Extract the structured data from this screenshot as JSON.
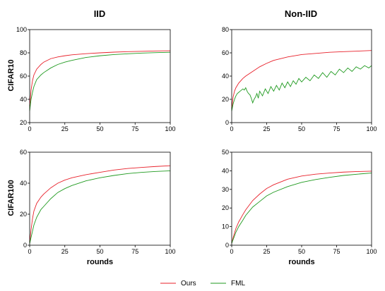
{
  "figure": {
    "col_titles": [
      "IID",
      "Non-IID"
    ],
    "row_labels": [
      "CIFAR10",
      "CIFAR100"
    ],
    "legend": [
      {
        "label": "Ours",
        "color": "#e8202a"
      },
      {
        "label": "FML",
        "color": "#1f9a1f"
      }
    ]
  },
  "chart_data": [
    {
      "type": "line",
      "col": "IID",
      "row": "CIFAR10",
      "xlabel": "",
      "ylabel": "CIFAR10",
      "xlim": [
        0,
        100
      ],
      "ylim": [
        20,
        100
      ],
      "xticks": [
        0,
        25,
        50,
        75,
        100
      ],
      "yticks": [
        20,
        40,
        60,
        80,
        100
      ],
      "grid": false,
      "series": [
        {
          "name": "Ours",
          "color": "#e8202a",
          "x": [
            0,
            1,
            2,
            3,
            5,
            8,
            10,
            15,
            20,
            25,
            30,
            40,
            50,
            60,
            70,
            80,
            90,
            100
          ],
          "y": [
            34,
            48,
            56,
            61,
            66,
            70,
            72,
            75,
            76.5,
            77.5,
            78.3,
            79.3,
            80,
            80.6,
            81,
            81.3,
            81.6,
            81.8
          ]
        },
        {
          "name": "FML",
          "color": "#1f9a1f",
          "x": [
            0,
            1,
            2,
            3,
            5,
            8,
            10,
            15,
            20,
            25,
            30,
            40,
            50,
            60,
            70,
            80,
            90,
            100
          ],
          "y": [
            30,
            40,
            46,
            51,
            57,
            61,
            63,
            67,
            70,
            72,
            73.5,
            76,
            77.5,
            78.5,
            79.2,
            79.8,
            80.2,
            80.5
          ]
        }
      ]
    },
    {
      "type": "line",
      "col": "Non-IID",
      "row": "CIFAR10",
      "xlabel": "",
      "ylabel": "",
      "xlim": [
        0,
        100
      ],
      "ylim": [
        0,
        80
      ],
      "xticks": [
        0,
        25,
        50,
        75,
        100
      ],
      "yticks": [
        0,
        20,
        40,
        60,
        80
      ],
      "grid": false,
      "series": [
        {
          "name": "Ours",
          "color": "#e8202a",
          "x": [
            0,
            1,
            2,
            3,
            5,
            8,
            10,
            15,
            20,
            25,
            30,
            40,
            50,
            60,
            70,
            80,
            90,
            100
          ],
          "y": [
            12,
            22,
            27,
            30,
            34,
            38,
            40,
            44,
            48,
            51,
            53.5,
            56.5,
            58.5,
            59.5,
            60.5,
            61,
            61.5,
            62
          ]
        },
        {
          "name": "FML",
          "color": "#1f9a1f",
          "x": [
            0,
            1,
            2,
            3,
            4,
            5,
            6,
            7,
            8,
            9,
            10,
            11,
            12,
            13,
            14,
            15,
            16,
            17,
            18,
            19,
            20,
            22,
            24,
            26,
            28,
            30,
            32,
            34,
            36,
            38,
            40,
            42,
            44,
            46,
            48,
            50,
            53,
            56,
            59,
            62,
            65,
            68,
            71,
            74,
            77,
            80,
            83,
            86,
            89,
            92,
            95,
            98,
            100
          ],
          "y": [
            10,
            16,
            20,
            23,
            25,
            26,
            27,
            28,
            29,
            28,
            30,
            27,
            25,
            24,
            21,
            17,
            20,
            22,
            25,
            21,
            27,
            23,
            29,
            25,
            31,
            27,
            32,
            28,
            34,
            30,
            35,
            31,
            36,
            33,
            38,
            35,
            39,
            36,
            41,
            38,
            43,
            39,
            44,
            41,
            46,
            43,
            47,
            44,
            48,
            46,
            49,
            47,
            49
          ]
        }
      ]
    },
    {
      "type": "line",
      "col": "IID",
      "row": "CIFAR100",
      "xlabel": "rounds",
      "ylabel": "CIFAR100",
      "xlim": [
        0,
        100
      ],
      "ylim": [
        0,
        60
      ],
      "xticks": [
        0,
        25,
        50,
        75,
        100
      ],
      "yticks": [
        0,
        20,
        40,
        60
      ],
      "grid": false,
      "series": [
        {
          "name": "Ours",
          "color": "#e8202a",
          "x": [
            0,
            1,
            2,
            3,
            5,
            8,
            10,
            15,
            20,
            25,
            30,
            40,
            50,
            60,
            70,
            80,
            90,
            100
          ],
          "y": [
            2,
            10,
            17,
            22,
            27,
            31,
            33,
            37,
            40,
            42,
            43.5,
            45.5,
            47,
            48.5,
            49.5,
            50.2,
            50.8,
            51.3
          ]
        },
        {
          "name": "FML",
          "color": "#1f9a1f",
          "x": [
            0,
            1,
            2,
            3,
            5,
            8,
            10,
            15,
            20,
            25,
            30,
            40,
            50,
            60,
            70,
            80,
            90,
            100
          ],
          "y": [
            1,
            5,
            9,
            13,
            18,
            23,
            25,
            30,
            34,
            36.5,
            38.5,
            41.5,
            43.5,
            45,
            46.2,
            47,
            47.6,
            48
          ]
        }
      ]
    },
    {
      "type": "line",
      "col": "Non-IID",
      "row": "CIFAR100",
      "xlabel": "rounds",
      "ylabel": "",
      "xlim": [
        0,
        100
      ],
      "ylim": [
        0,
        50
      ],
      "xticks": [
        0,
        25,
        50,
        75,
        100
      ],
      "yticks": [
        0,
        10,
        20,
        30,
        40,
        50
      ],
      "grid": false,
      "series": [
        {
          "name": "Ours",
          "color": "#e8202a",
          "x": [
            0,
            1,
            2,
            3,
            5,
            8,
            10,
            15,
            20,
            25,
            30,
            40,
            50,
            60,
            70,
            80,
            90,
            100
          ],
          "y": [
            1,
            4,
            6.5,
            9,
            12.5,
            16.5,
            19,
            24,
            27.5,
            30.5,
            32.5,
            35.5,
            37.2,
            38.2,
            38.8,
            39.3,
            39.6,
            39.8
          ]
        },
        {
          "name": "FML",
          "color": "#1f9a1f",
          "x": [
            0,
            1,
            2,
            3,
            5,
            8,
            10,
            15,
            20,
            25,
            30,
            40,
            50,
            60,
            70,
            80,
            90,
            100
          ],
          "y": [
            1,
            3,
            5,
            7,
            10,
            13.5,
            16,
            20.5,
            23.5,
            26.5,
            28.5,
            31.5,
            33.8,
            35.3,
            36.5,
            37.5,
            38.2,
            38.8
          ]
        }
      ]
    }
  ]
}
